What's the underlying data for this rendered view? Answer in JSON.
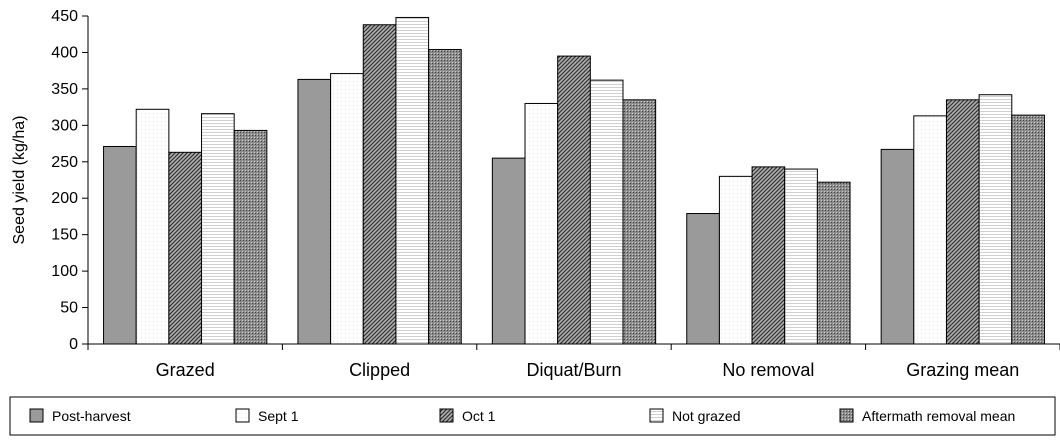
{
  "chart_data": {
    "type": "bar",
    "ylabel": "Seed yield (kg/ha)",
    "xlabel": "",
    "ylim": [
      0,
      450
    ],
    "yticks": [
      0,
      50,
      100,
      150,
      200,
      250,
      300,
      350,
      400,
      450
    ],
    "categories": [
      "Grazed",
      "Clipped",
      "Diquat/Burn",
      "No removal",
      "Grazing mean"
    ],
    "series": [
      {
        "name": "Post-harvest",
        "pattern": "solid-gray",
        "values": [
          271,
          363,
          255,
          179,
          267
        ]
      },
      {
        "name": "Sept 1",
        "pattern": "white",
        "values": [
          322,
          371,
          330,
          230,
          313
        ]
      },
      {
        "name": "Oct 1",
        "pattern": "diagonal-hatch",
        "values": [
          263,
          438,
          395,
          243,
          335
        ]
      },
      {
        "name": "Not grazed",
        "pattern": "light-lines",
        "values": [
          316,
          448,
          362,
          240,
          342
        ]
      },
      {
        "name": "Aftermath removal mean",
        "pattern": "dark-dots",
        "values": [
          293,
          404,
          335,
          222,
          314
        ]
      }
    ],
    "legend_position": "bottom",
    "grid": false,
    "colors": {
      "post_harvest": "#9a9a9a",
      "white": "#ffffff",
      "hatch_bg": "#707070",
      "dots_bg": "#8c8c8c",
      "outline": "#000000"
    }
  }
}
